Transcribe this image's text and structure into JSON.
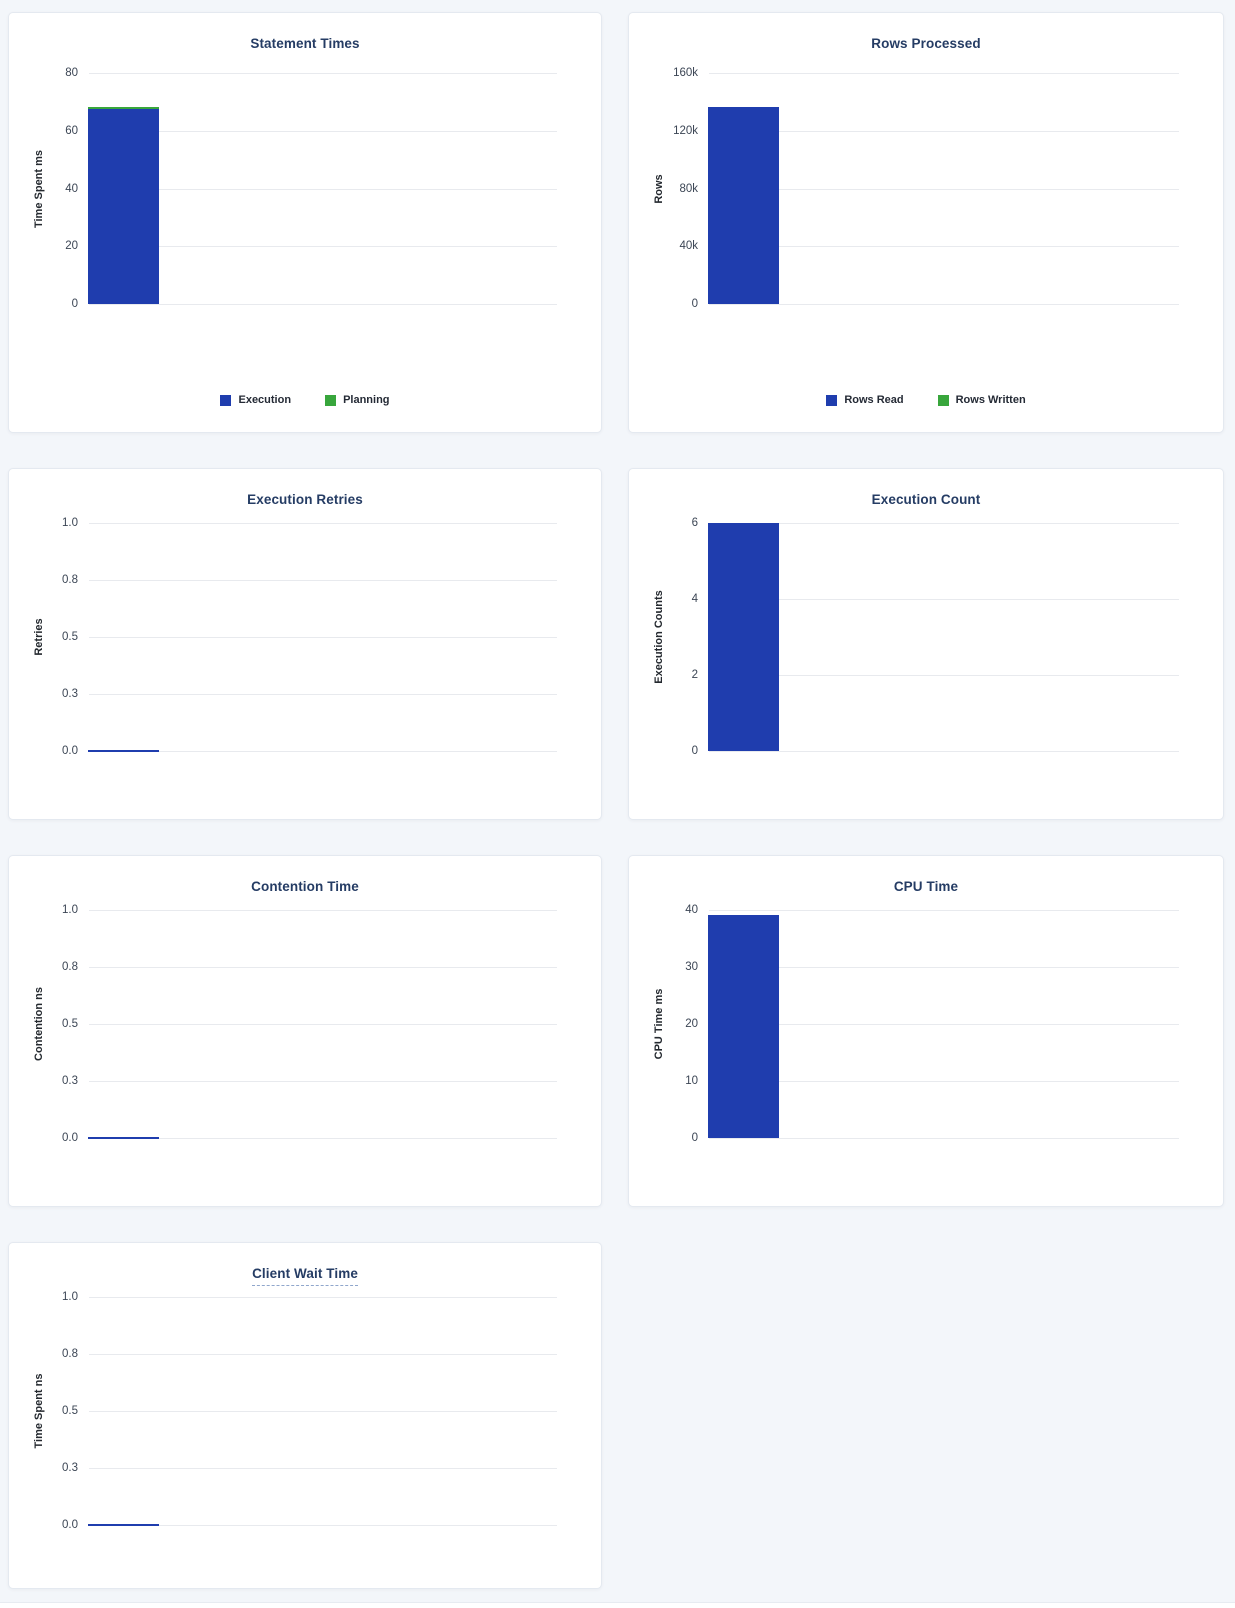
{
  "page": {
    "background_color": "#f3f6fa",
    "card_background": "#ffffff",
    "card_border_color": "#e4e9f0"
  },
  "colors": {
    "blue": "#1f3dae",
    "green": "#38a63c",
    "title_text": "#253c64",
    "tick_text": "#3b4554",
    "axis_label_text": "#24292f",
    "gridline": "#e8eaee"
  },
  "chart_data": [
    {
      "id": "statement-times",
      "type": "bar",
      "title": "Statement Times",
      "ylabel": "Time Spent ms",
      "ylim": [
        0,
        80
      ],
      "grid": true,
      "stacked": true,
      "yticks": [
        {
          "label": "80",
          "value": 80
        },
        {
          "label": "60",
          "value": 60
        },
        {
          "label": "40",
          "value": 40
        },
        {
          "label": "20",
          "value": 20
        },
        {
          "label": "0",
          "value": 0
        }
      ],
      "series": [
        {
          "name": "Execution",
          "values": [
            67.5
          ],
          "color": "blue"
        },
        {
          "name": "Planning",
          "values": [
            0.7
          ],
          "color": "green"
        }
      ],
      "legend": [
        {
          "label": "Execution",
          "color": "blue"
        },
        {
          "label": "Planning",
          "color": "green"
        }
      ],
      "legend_position": "bottom",
      "title_dashed_underline": false
    },
    {
      "id": "rows-processed",
      "type": "bar",
      "title": "Rows Processed",
      "ylabel": "Rows",
      "ylim": [
        0,
        160000
      ],
      "grid": true,
      "stacked": true,
      "yticks": [
        {
          "label": "160k",
          "value": 160000
        },
        {
          "label": "120k",
          "value": 120000
        },
        {
          "label": "80k",
          "value": 80000
        },
        {
          "label": "40k",
          "value": 40000
        },
        {
          "label": "0",
          "value": 0
        }
      ],
      "series": [
        {
          "name": "Rows Read",
          "values": [
            136500
          ],
          "color": "blue"
        },
        {
          "name": "Rows Written",
          "values": [
            0
          ],
          "color": "green"
        }
      ],
      "legend": [
        {
          "label": "Rows Read",
          "color": "blue"
        },
        {
          "label": "Rows Written",
          "color": "green"
        }
      ],
      "legend_position": "bottom",
      "title_dashed_underline": false
    },
    {
      "id": "execution-retries",
      "type": "bar",
      "title": "Execution Retries",
      "ylabel": "Retries",
      "ylim": [
        0,
        1
      ],
      "grid": true,
      "stacked": false,
      "yticks": [
        {
          "label": "1.0",
          "value": 1.0
        },
        {
          "label": "0.8",
          "value": 0.75
        },
        {
          "label": "0.5",
          "value": 0.5
        },
        {
          "label": "0.3",
          "value": 0.25
        },
        {
          "label": "0.0",
          "value": 0
        }
      ],
      "series": [
        {
          "name": "Retries",
          "values": [
            0
          ],
          "color": "blue"
        }
      ],
      "legend": [],
      "legend_position": "none",
      "title_dashed_underline": false
    },
    {
      "id": "execution-count",
      "type": "bar",
      "title": "Execution Count",
      "ylabel": "Execution Counts",
      "ylim": [
        0,
        6
      ],
      "grid": true,
      "stacked": false,
      "yticks": [
        {
          "label": "6",
          "value": 6
        },
        {
          "label": "4",
          "value": 4
        },
        {
          "label": "2",
          "value": 2
        },
        {
          "label": "0",
          "value": 0
        }
      ],
      "series": [
        {
          "name": "Execution Count",
          "values": [
            6
          ],
          "color": "blue"
        }
      ],
      "legend": [],
      "legend_position": "none",
      "title_dashed_underline": false
    },
    {
      "id": "contention-time",
      "type": "bar",
      "title": "Contention Time",
      "ylabel": "Contention ns",
      "ylim": [
        0,
        1
      ],
      "grid": true,
      "stacked": false,
      "yticks": [
        {
          "label": "1.0",
          "value": 1.0
        },
        {
          "label": "0.8",
          "value": 0.75
        },
        {
          "label": "0.5",
          "value": 0.5
        },
        {
          "label": "0.3",
          "value": 0.25
        },
        {
          "label": "0.0",
          "value": 0
        }
      ],
      "series": [
        {
          "name": "Contention",
          "values": [
            0
          ],
          "color": "blue"
        }
      ],
      "legend": [],
      "legend_position": "none",
      "title_dashed_underline": false
    },
    {
      "id": "cpu-time",
      "type": "bar",
      "title": "CPU Time",
      "ylabel": "CPU Time ms",
      "ylim": [
        0,
        40
      ],
      "grid": true,
      "stacked": false,
      "yticks": [
        {
          "label": "40",
          "value": 40
        },
        {
          "label": "30",
          "value": 30
        },
        {
          "label": "20",
          "value": 20
        },
        {
          "label": "10",
          "value": 10
        },
        {
          "label": "0",
          "value": 0
        }
      ],
      "series": [
        {
          "name": "CPU Time",
          "values": [
            39.1
          ],
          "color": "blue"
        }
      ],
      "legend": [],
      "legend_position": "none",
      "title_dashed_underline": false
    },
    {
      "id": "client-wait-time",
      "type": "bar",
      "title": "Client Wait Time",
      "ylabel": "Time Spent ns",
      "ylim": [
        0,
        1
      ],
      "grid": true,
      "stacked": false,
      "yticks": [
        {
          "label": "1.0",
          "value": 1.0
        },
        {
          "label": "0.8",
          "value": 0.75
        },
        {
          "label": "0.5",
          "value": 0.5
        },
        {
          "label": "0.3",
          "value": 0.25
        },
        {
          "label": "0.0",
          "value": 0
        }
      ],
      "series": [
        {
          "name": "Client Wait",
          "values": [
            0
          ],
          "color": "blue"
        }
      ],
      "legend": [],
      "legend_position": "none",
      "title_dashed_underline": true
    }
  ]
}
